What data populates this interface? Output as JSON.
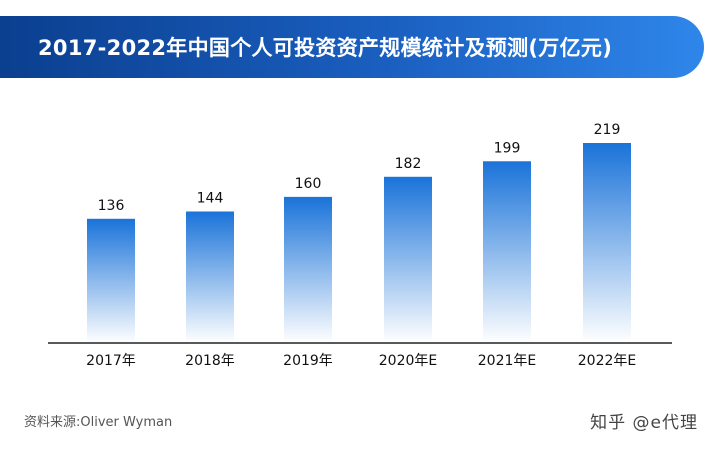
{
  "header": {
    "title": "2017-2022年中国个人可投资资产规模统计及预测(万亿元)"
  },
  "chart_data": {
    "type": "bar",
    "title": "2017-2022年中国个人可投资资产规模统计及预测(万亿元)",
    "categories": [
      "2017年",
      "2018年",
      "2019年",
      "2020年E",
      "2021年E",
      "2022年E"
    ],
    "values": [
      136,
      144,
      160,
      182,
      199,
      219
    ],
    "xlabel": "",
    "ylabel": "",
    "ylim": [
      0,
      230
    ],
    "grid": false,
    "legend": "none",
    "bar_color_top": "#1a73d9",
    "bar_color_bottom": "#ffffff"
  },
  "footer": {
    "source": "资料来源:Oliver Wyman",
    "brand": "知乎 @e代理"
  }
}
